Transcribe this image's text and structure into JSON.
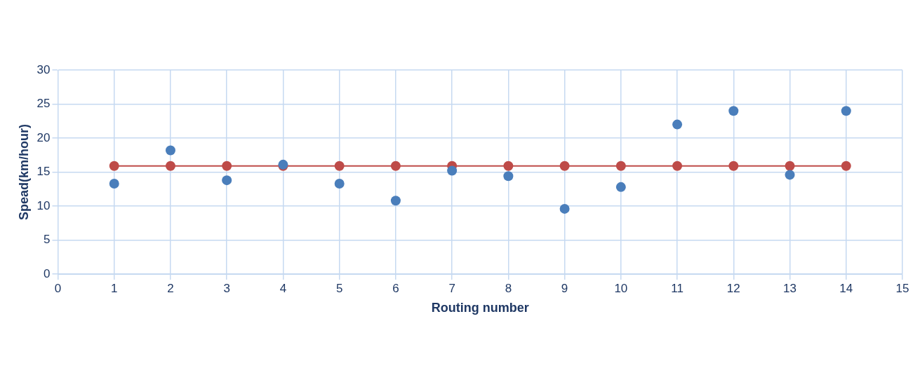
{
  "chart_data": {
    "type": "scatter",
    "xlabel": "Routing number",
    "ylabel": "Spead(km/hour)",
    "x": [
      1,
      2,
      3,
      4,
      5,
      6,
      7,
      8,
      9,
      10,
      11,
      12,
      13,
      14
    ],
    "series": [
      {
        "color": "#4a7ebb",
        "values": [
          13.3,
          18.2,
          13.8,
          16.1,
          13.3,
          10.8,
          15.2,
          14.4,
          9.6,
          12.8,
          22,
          24,
          14.6,
          24
        ]
      },
      {
        "type": "line",
        "color": "#be4b48",
        "values": [
          15.9,
          15.9,
          15.9,
          15.9,
          15.9,
          15.9,
          15.9,
          15.9,
          15.9,
          15.9,
          15.9,
          15.9,
          15.9,
          15.9
        ]
      }
    ],
    "xlim": [
      0,
      15
    ],
    "xticks": [
      0,
      1,
      2,
      3,
      4,
      5,
      6,
      7,
      8,
      9,
      10,
      11,
      12,
      13,
      14,
      15
    ],
    "ylim": [
      0,
      30
    ],
    "yticks": [
      0,
      5,
      10,
      15,
      20,
      25,
      30
    ],
    "grid": true,
    "legend": false,
    "marker": "circle"
  }
}
